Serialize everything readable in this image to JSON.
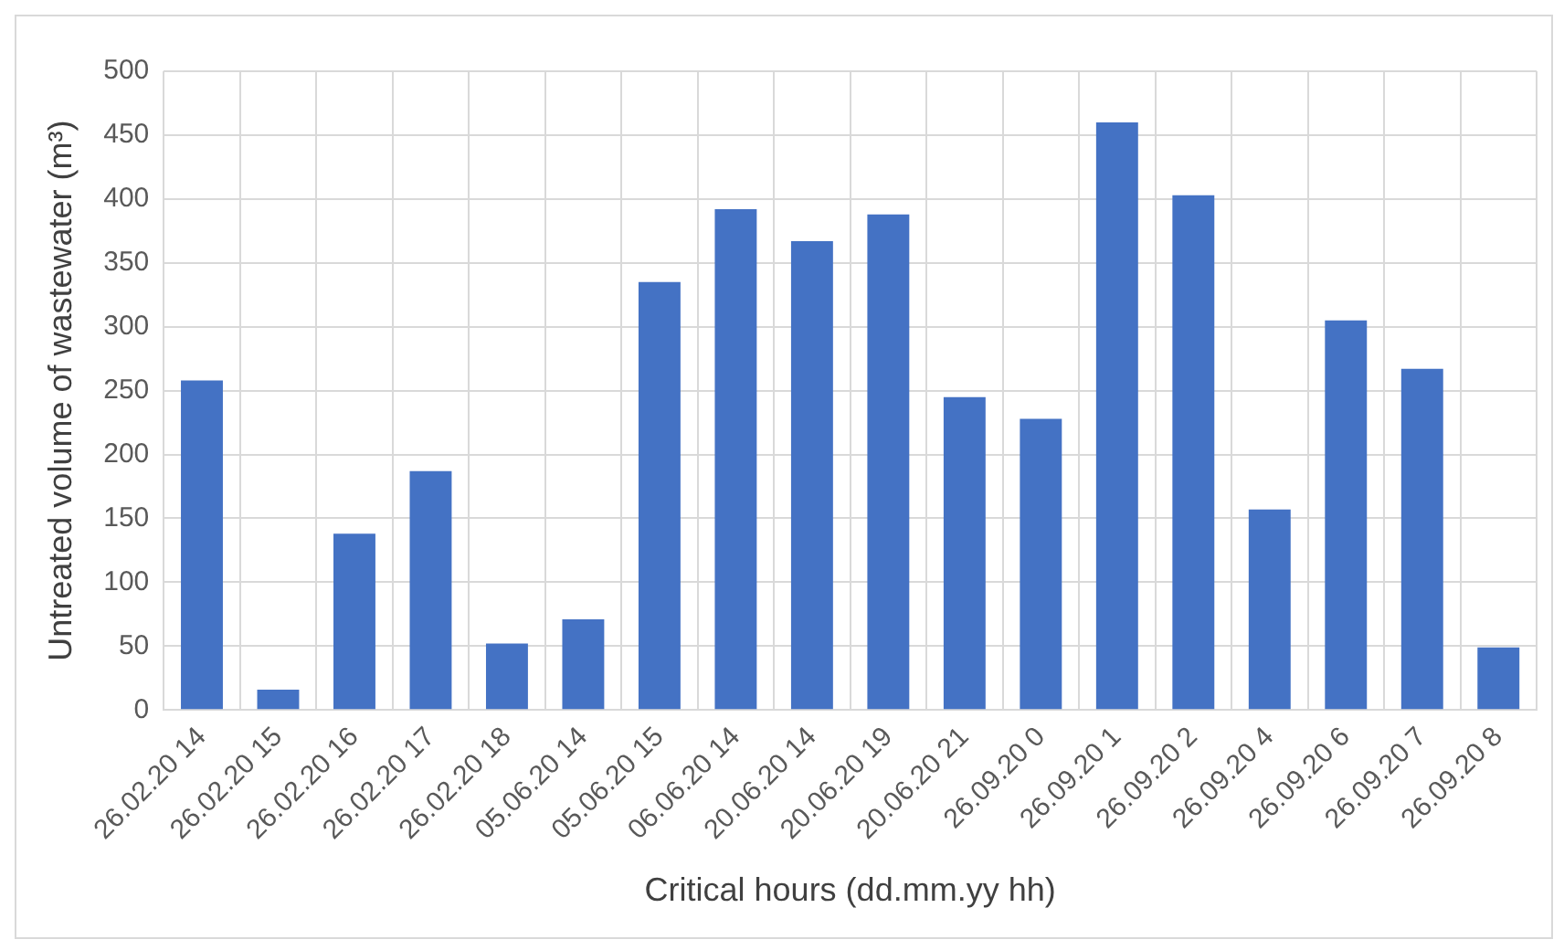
{
  "chart_data": {
    "type": "bar",
    "xlabel": "Critical hours (dd.mm.yy hh)",
    "ylabel": "Untreated volume of wastewater (m³)",
    "categories": [
      "26.02.20 14",
      "26.02.20 15",
      "26.02.20 16",
      "26.02.20 17",
      "26.02.20 18",
      "05.06.20 14",
      "05.06.20 15",
      "06.06.20 14",
      "20.06.20 14",
      "20.06.20 19",
      "20.06.20 21",
      "26.09.20 0",
      "26.09.20 1",
      "26.09.20 2",
      "26.09.20 4",
      "26.09.20 6",
      "26.09.20 7",
      "26.09.20 8"
    ],
    "values": [
      258,
      16,
      138,
      187,
      52,
      71,
      335,
      392,
      367,
      388,
      245,
      228,
      460,
      403,
      157,
      305,
      267,
      49
    ],
    "color": "#4472c4",
    "ylim": [
      0,
      500
    ],
    "yticks": [
      0,
      50,
      100,
      150,
      200,
      250,
      300,
      350,
      400,
      450,
      500
    ],
    "grid": true
  }
}
